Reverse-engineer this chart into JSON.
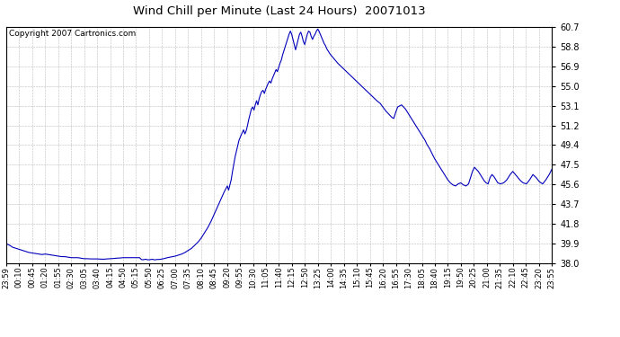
{
  "title": "Wind Chill per Minute (Last 24 Hours)  20071013",
  "copyright_text": "Copyright 2007 Cartronics.com",
  "line_color": "#0000BB",
  "background_color": "#ffffff",
  "grid_color": "#bbbbbb",
  "ylim": [
    38.0,
    60.7
  ],
  "yticks": [
    38.0,
    39.9,
    41.8,
    43.7,
    45.6,
    47.5,
    49.4,
    51.2,
    53.1,
    55.0,
    56.9,
    58.8,
    60.7
  ],
  "xtick_labels": [
    "23:59",
    "00:10",
    "00:45",
    "01:20",
    "01:55",
    "02:30",
    "03:05",
    "03:40",
    "04:15",
    "04:50",
    "05:15",
    "05:50",
    "06:25",
    "07:00",
    "07:35",
    "08:10",
    "08:45",
    "09:20",
    "09:55",
    "10:30",
    "11:05",
    "11:40",
    "12:15",
    "12:50",
    "13:25",
    "14:00",
    "14:35",
    "15:10",
    "15:45",
    "16:20",
    "16:55",
    "17:30",
    "18:05",
    "18:40",
    "19:15",
    "19:50",
    "20:25",
    "21:00",
    "21:35",
    "22:10",
    "22:45",
    "23:20",
    "23:55"
  ],
  "curve_points": [
    [
      0,
      39.85
    ],
    [
      5,
      39.7
    ],
    [
      10,
      39.5
    ],
    [
      15,
      39.4
    ],
    [
      20,
      39.3
    ],
    [
      25,
      39.2
    ],
    [
      30,
      39.1
    ],
    [
      35,
      39.0
    ],
    [
      40,
      38.95
    ],
    [
      45,
      38.9
    ],
    [
      50,
      38.85
    ],
    [
      55,
      38.8
    ],
    [
      60,
      38.85
    ],
    [
      65,
      38.8
    ],
    [
      70,
      38.75
    ],
    [
      75,
      38.7
    ],
    [
      80,
      38.65
    ],
    [
      85,
      38.6
    ],
    [
      90,
      38.6
    ],
    [
      95,
      38.55
    ],
    [
      100,
      38.5
    ],
    [
      105,
      38.5
    ],
    [
      110,
      38.5
    ],
    [
      115,
      38.45
    ],
    [
      120,
      38.4
    ],
    [
      125,
      38.4
    ],
    [
      130,
      38.38
    ],
    [
      135,
      38.38
    ],
    [
      140,
      38.38
    ],
    [
      145,
      38.36
    ],
    [
      150,
      38.35
    ],
    [
      155,
      38.38
    ],
    [
      160,
      38.4
    ],
    [
      165,
      38.42
    ],
    [
      170,
      38.45
    ],
    [
      175,
      38.47
    ],
    [
      180,
      38.5
    ],
    [
      185,
      38.5
    ],
    [
      190,
      38.5
    ],
    [
      195,
      38.5
    ],
    [
      200,
      38.5
    ],
    [
      205,
      38.5
    ],
    [
      208,
      38.32
    ],
    [
      210,
      38.3
    ],
    [
      212,
      38.32
    ],
    [
      215,
      38.35
    ],
    [
      217,
      38.3
    ],
    [
      220,
      38.3
    ],
    [
      222,
      38.32
    ],
    [
      225,
      38.35
    ],
    [
      227,
      38.3
    ],
    [
      230,
      38.3
    ],
    [
      232,
      38.33
    ],
    [
      235,
      38.33
    ],
    [
      238,
      38.35
    ],
    [
      240,
      38.38
    ],
    [
      242,
      38.4
    ],
    [
      245,
      38.45
    ],
    [
      248,
      38.5
    ],
    [
      252,
      38.55
    ],
    [
      256,
      38.6
    ],
    [
      260,
      38.65
    ],
    [
      265,
      38.75
    ],
    [
      270,
      38.85
    ],
    [
      275,
      39.0
    ],
    [
      280,
      39.2
    ],
    [
      285,
      39.4
    ],
    [
      290,
      39.7
    ],
    [
      295,
      40.0
    ],
    [
      300,
      40.4
    ],
    [
      305,
      40.9
    ],
    [
      310,
      41.4
    ],
    [
      315,
      42.0
    ],
    [
      320,
      42.7
    ],
    [
      325,
      43.4
    ],
    [
      330,
      44.1
    ],
    [
      335,
      44.8
    ],
    [
      340,
      45.4
    ],
    [
      342,
      45.0
    ],
    [
      344,
      45.5
    ],
    [
      346,
      46.0
    ],
    [
      348,
      46.8
    ],
    [
      350,
      47.5
    ],
    [
      352,
      48.2
    ],
    [
      355,
      49.0
    ],
    [
      358,
      49.8
    ],
    [
      362,
      50.4
    ],
    [
      365,
      50.8
    ],
    [
      367,
      50.4
    ],
    [
      369,
      50.7
    ],
    [
      371,
      51.2
    ],
    [
      373,
      51.8
    ],
    [
      375,
      52.3
    ],
    [
      377,
      52.8
    ],
    [
      379,
      53.0
    ],
    [
      381,
      52.7
    ],
    [
      383,
      53.2
    ],
    [
      385,
      53.6
    ],
    [
      387,
      53.2
    ],
    [
      389,
      53.8
    ],
    [
      391,
      54.2
    ],
    [
      393,
      54.5
    ],
    [
      395,
      54.6
    ],
    [
      397,
      54.3
    ],
    [
      399,
      54.7
    ],
    [
      401,
      55.0
    ],
    [
      403,
      55.3
    ],
    [
      405,
      55.5
    ],
    [
      407,
      55.3
    ],
    [
      409,
      55.7
    ],
    [
      411,
      56.0
    ],
    [
      413,
      56.3
    ],
    [
      415,
      56.6
    ],
    [
      417,
      56.4
    ],
    [
      419,
      56.8
    ],
    [
      421,
      57.2
    ],
    [
      423,
      57.5
    ],
    [
      425,
      58.0
    ],
    [
      427,
      58.4
    ],
    [
      429,
      58.8
    ],
    [
      431,
      59.2
    ],
    [
      433,
      59.6
    ],
    [
      435,
      60.0
    ],
    [
      437,
      60.3
    ],
    [
      439,
      60.0
    ],
    [
      441,
      59.5
    ],
    [
      443,
      59.0
    ],
    [
      445,
      58.5
    ],
    [
      447,
      59.0
    ],
    [
      449,
      59.5
    ],
    [
      451,
      60.0
    ],
    [
      453,
      60.2
    ],
    [
      455,
      59.8
    ],
    [
      457,
      59.3
    ],
    [
      459,
      59.0
    ],
    [
      461,
      59.5
    ],
    [
      463,
      60.0
    ],
    [
      465,
      60.3
    ],
    [
      467,
      60.2
    ],
    [
      469,
      59.8
    ],
    [
      471,
      59.5
    ],
    [
      473,
      59.8
    ],
    [
      475,
      60.0
    ],
    [
      477,
      60.3
    ],
    [
      479,
      60.5
    ],
    [
      481,
      60.3
    ],
    [
      483,
      60.0
    ],
    [
      485,
      59.7
    ],
    [
      487,
      59.4
    ],
    [
      489,
      59.1
    ],
    [
      491,
      58.9
    ],
    [
      493,
      58.6
    ],
    [
      495,
      58.4
    ],
    [
      498,
      58.1
    ],
    [
      502,
      57.8
    ],
    [
      506,
      57.5
    ],
    [
      510,
      57.2
    ],
    [
      515,
      56.9
    ],
    [
      520,
      56.6
    ],
    [
      525,
      56.3
    ],
    [
      530,
      56.0
    ],
    [
      535,
      55.7
    ],
    [
      540,
      55.4
    ],
    [
      545,
      55.1
    ],
    [
      550,
      54.8
    ],
    [
      555,
      54.5
    ],
    [
      560,
      54.2
    ],
    [
      565,
      53.9
    ],
    [
      570,
      53.6
    ],
    [
      575,
      53.35
    ],
    [
      578,
      53.1
    ],
    [
      581,
      52.85
    ],
    [
      584,
      52.6
    ],
    [
      587,
      52.4
    ],
    [
      590,
      52.2
    ],
    [
      593,
      52.0
    ],
    [
      596,
      51.9
    ],
    [
      599,
      52.5
    ],
    [
      602,
      53.0
    ],
    [
      605,
      53.1
    ],
    [
      608,
      53.2
    ],
    [
      611,
      53.0
    ],
    [
      614,
      52.8
    ],
    [
      617,
      52.5
    ],
    [
      620,
      52.2
    ],
    [
      623,
      51.9
    ],
    [
      626,
      51.6
    ],
    [
      629,
      51.3
    ],
    [
      632,
      51.0
    ],
    [
      635,
      50.7
    ],
    [
      638,
      50.4
    ],
    [
      641,
      50.1
    ],
    [
      644,
      49.8
    ],
    [
      647,
      49.4
    ],
    [
      651,
      49.0
    ],
    [
      655,
      48.5
    ],
    [
      659,
      48.0
    ],
    [
      663,
      47.6
    ],
    [
      667,
      47.2
    ],
    [
      671,
      46.8
    ],
    [
      675,
      46.4
    ],
    [
      679,
      46.0
    ],
    [
      683,
      45.7
    ],
    [
      687,
      45.5
    ],
    [
      691,
      45.4
    ],
    [
      695,
      45.6
    ],
    [
      699,
      45.7
    ],
    [
      703,
      45.5
    ],
    [
      707,
      45.4
    ],
    [
      711,
      45.6
    ],
    [
      714,
      46.2
    ],
    [
      717,
      46.8
    ],
    [
      720,
      47.2
    ],
    [
      723,
      47.0
    ],
    [
      726,
      46.8
    ],
    [
      729,
      46.5
    ],
    [
      732,
      46.2
    ],
    [
      735,
      45.9
    ],
    [
      738,
      45.7
    ],
    [
      741,
      45.6
    ],
    [
      744,
      46.2
    ],
    [
      747,
      46.5
    ],
    [
      750,
      46.3
    ],
    [
      753,
      46.0
    ],
    [
      756,
      45.7
    ],
    [
      760,
      45.6
    ],
    [
      765,
      45.7
    ],
    [
      770,
      46.0
    ],
    [
      775,
      46.5
    ],
    [
      779,
      46.8
    ],
    [
      783,
      46.5
    ],
    [
      787,
      46.2
    ],
    [
      791,
      45.9
    ],
    [
      795,
      45.7
    ],
    [
      800,
      45.6
    ],
    [
      805,
      46.0
    ],
    [
      810,
      46.5
    ],
    [
      815,
      46.2
    ],
    [
      820,
      45.8
    ],
    [
      825,
      45.6
    ],
    [
      830,
      46.0
    ],
    [
      835,
      46.5
    ],
    [
      839,
      47.0
    ]
  ]
}
